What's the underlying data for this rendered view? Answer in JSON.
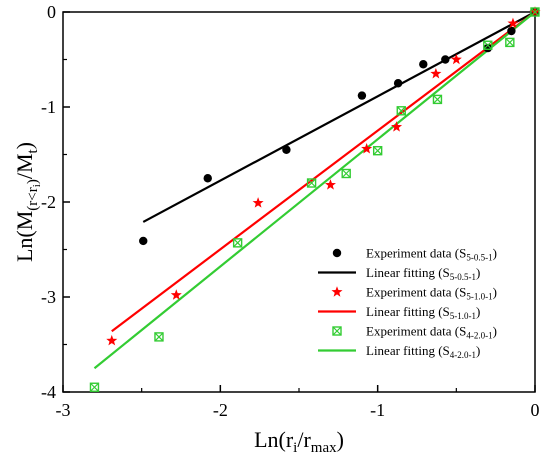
{
  "chart_data": {
    "type": "scatter",
    "xlabel": {
      "main": "Ln(r",
      "sub1": "i",
      "mid": "/r",
      "sub2": "max",
      "end": ")"
    },
    "ylabel": {
      "main": "Ln(M",
      "sub1": "(r<r",
      "sub1b": "i",
      "sub1c": ")",
      "mid": "/M",
      "sub2": "t",
      "end": ")"
    },
    "xlim": [
      -3,
      0
    ],
    "ylim": [
      -4,
      0
    ],
    "xticks": [
      -3,
      -2,
      -1,
      0
    ],
    "yticks": [
      -4,
      -3,
      -2,
      -1,
      0
    ],
    "xtick_labels": [
      "-3",
      "-2",
      "-1",
      "0"
    ],
    "ytick_labels": [
      "-4",
      "-3",
      "-2",
      "-1",
      "0"
    ],
    "grid": false,
    "legend_position": "bottom-right",
    "series": [
      {
        "kind": "scatter",
        "marker": "circle",
        "color": "#000000",
        "legend_label": "Experiment data (S",
        "legend_sub": "5-0.5-1",
        "legend_end": ")",
        "x": [
          -2.49,
          -2.08,
          -1.58,
          -1.1,
          -0.87,
          -0.71,
          -0.57,
          -0.3,
          -0.15,
          0
        ],
        "y": [
          -2.41,
          -1.75,
          -1.45,
          -0.88,
          -0.75,
          -0.55,
          -0.5,
          -0.38,
          -0.2,
          0
        ]
      },
      {
        "kind": "line",
        "color": "#000000",
        "legend_label": "Linear fitting (S",
        "legend_sub": "5-0.5-1",
        "legend_end": ")",
        "x": [
          -2.49,
          0
        ],
        "y": [
          -2.21,
          0
        ]
      },
      {
        "kind": "scatter",
        "marker": "star",
        "color": "#ff0000",
        "legend_label": "Experiment data (S",
        "legend_sub": "5-1.0-1",
        "legend_end": ")",
        "x": [
          -2.69,
          -2.28,
          -1.76,
          -1.3,
          -1.07,
          -0.88,
          -0.63,
          -0.5,
          -0.14,
          0
        ],
        "y": [
          -3.46,
          -2.98,
          -2.01,
          -1.82,
          -1.44,
          -1.21,
          -0.65,
          -0.5,
          -0.12,
          0
        ]
      },
      {
        "kind": "line",
        "color": "#ff0000",
        "legend_label": "Linear fitting (S",
        "legend_sub": "5-1.0-1",
        "legend_end": ")",
        "x": [
          -2.69,
          0
        ],
        "y": [
          -3.36,
          0
        ]
      },
      {
        "kind": "scatter",
        "marker": "crossed-box",
        "color": "#33cc33",
        "legend_label": "Experiment data (S",
        "legend_sub": "4-2.0-1",
        "legend_end": ")",
        "x": [
          -2.8,
          -2.39,
          -1.89,
          -1.42,
          -1.2,
          -1.0,
          -0.85,
          -0.62,
          -0.3,
          -0.16,
          0
        ],
        "y": [
          -3.95,
          -3.42,
          -2.43,
          -1.8,
          -1.7,
          -1.46,
          -1.04,
          -0.92,
          -0.35,
          -0.32,
          0
        ]
      },
      {
        "kind": "line",
        "color": "#33cc33",
        "legend_label": "Linear fitting (S",
        "legend_sub": "4-2.0-1",
        "legend_end": ")",
        "x": [
          -2.8,
          0
        ],
        "y": [
          -3.75,
          0
        ]
      }
    ]
  }
}
